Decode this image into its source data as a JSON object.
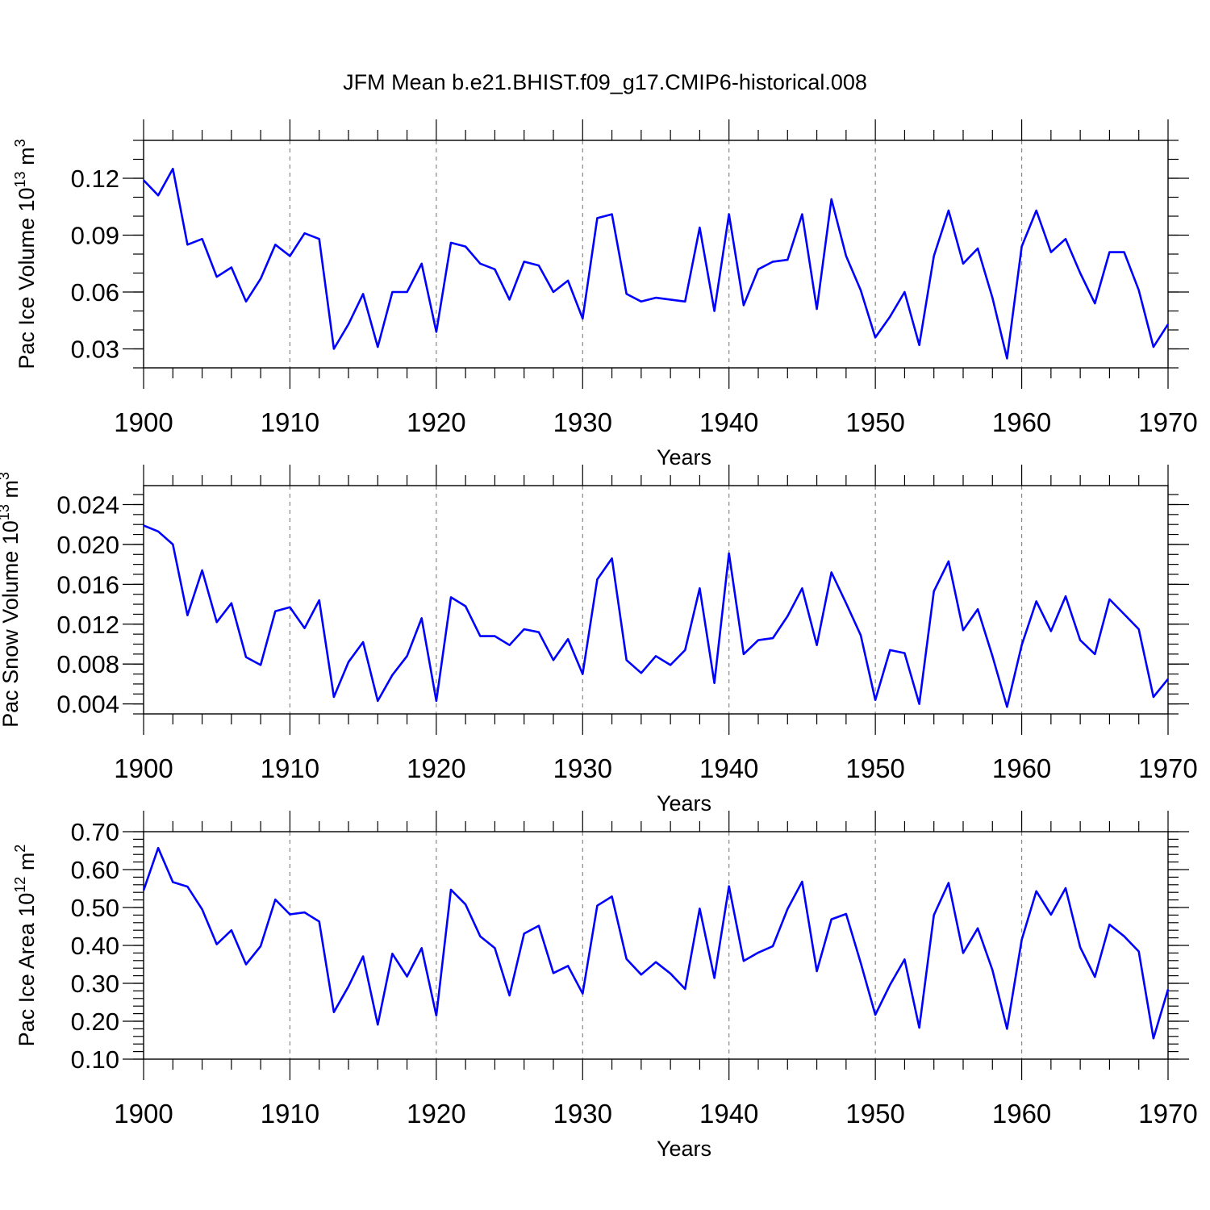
{
  "figure": {
    "title": "JFM Mean b.e21.BHIST.f09_g17.CMIP6-historical.008"
  },
  "colors": {
    "line": "#0000ff",
    "axis": "#000000",
    "grid": "#888888",
    "background": "#ffffff"
  },
  "chart_data": [
    {
      "type": "line",
      "ylabel": "Pac Ice Volume 10",
      "ylabel_exp": "13",
      "ylabel_unit": " m",
      "ylabel_unit_exp": "3",
      "xlabel": "Years",
      "xlim": [
        1900,
        1970
      ],
      "ylim": [
        0.02,
        0.14
      ],
      "yticks": [
        0.03,
        0.06,
        0.09,
        0.12
      ],
      "ytick_labels": [
        "0.03",
        "0.06",
        "0.09",
        "0.12"
      ],
      "yminor": 0.01,
      "xticks": [
        1900,
        1910,
        1920,
        1930,
        1940,
        1950,
        1960,
        1970
      ],
      "xtick_labels": [
        "1900",
        "1910",
        "1920",
        "1930",
        "1940",
        "1950",
        "1960",
        "1970"
      ],
      "grid": "vertical dashed at decades",
      "x_start": 1900,
      "values": [
        0.119,
        0.111,
        0.125,
        0.085,
        0.088,
        0.068,
        0.073,
        0.055,
        0.067,
        0.085,
        0.079,
        0.091,
        0.088,
        0.03,
        0.043,
        0.059,
        0.031,
        0.06,
        0.06,
        0.075,
        0.039,
        0.086,
        0.084,
        0.075,
        0.072,
        0.056,
        0.076,
        0.074,
        0.06,
        0.066,
        0.046,
        0.099,
        0.101,
        0.059,
        0.055,
        0.057,
        0.056,
        0.055,
        0.094,
        0.05,
        0.101,
        0.053,
        0.072,
        0.076,
        0.077,
        0.101,
        0.051,
        0.109,
        0.079,
        0.061,
        0.036,
        0.047,
        0.06,
        0.032,
        0.079,
        0.103,
        0.075,
        0.083,
        0.057,
        0.025,
        0.084,
        0.103,
        0.081,
        0.088,
        0.07,
        0.054,
        0.081,
        0.081,
        0.061,
        0.031,
        0.043
      ]
    },
    {
      "type": "line",
      "ylabel": "Pac Snow Volume 10",
      "ylabel_exp": "13",
      "ylabel_unit": " m",
      "ylabel_unit_exp": "3",
      "xlabel": "Years",
      "xlim": [
        1900,
        1970
      ],
      "ylim": [
        0.003,
        0.0259
      ],
      "yticks": [
        0.004,
        0.008,
        0.012,
        0.016,
        0.02,
        0.024
      ],
      "ytick_labels": [
        "0.004",
        "0.008",
        "0.012",
        "0.016",
        "0.020",
        "0.024"
      ],
      "yminor": 0.001,
      "xticks": [
        1900,
        1910,
        1920,
        1930,
        1940,
        1950,
        1960,
        1970
      ],
      "xtick_labels": [
        "1900",
        "1910",
        "1920",
        "1930",
        "1940",
        "1950",
        "1960",
        "1970"
      ],
      "grid": "vertical dashed at decades",
      "x_start": 1900,
      "values": [
        0.0219,
        0.0213,
        0.02,
        0.0129,
        0.0174,
        0.0122,
        0.0141,
        0.0087,
        0.0079,
        0.0133,
        0.0137,
        0.0116,
        0.0144,
        0.0047,
        0.0082,
        0.0102,
        0.0043,
        0.0069,
        0.0088,
        0.0126,
        0.0043,
        0.0147,
        0.0138,
        0.0108,
        0.0108,
        0.0099,
        0.0115,
        0.0112,
        0.0084,
        0.0105,
        0.007,
        0.0165,
        0.0186,
        0.0084,
        0.0071,
        0.0088,
        0.0079,
        0.0094,
        0.0156,
        0.0061,
        0.0191,
        0.009,
        0.0104,
        0.0106,
        0.0128,
        0.0156,
        0.0099,
        0.0172,
        0.0141,
        0.0109,
        0.0044,
        0.0094,
        0.0091,
        0.004,
        0.0153,
        0.0183,
        0.0114,
        0.0135,
        0.0088,
        0.0037,
        0.0099,
        0.0143,
        0.0113,
        0.0148,
        0.0104,
        0.009,
        0.0145,
        0.013,
        0.0115,
        0.0047,
        0.0065
      ]
    },
    {
      "type": "line",
      "ylabel": "Pac Ice Area 10",
      "ylabel_exp": "12",
      "ylabel_unit": " m",
      "ylabel_unit_exp": "2",
      "xlabel": "Years",
      "xlim": [
        1900,
        1970
      ],
      "ylim": [
        0.1,
        0.7
      ],
      "yticks": [
        0.1,
        0.2,
        0.3,
        0.4,
        0.5,
        0.6,
        0.7
      ],
      "ytick_labels": [
        "0.10",
        "0.20",
        "0.30",
        "0.40",
        "0.50",
        "0.60",
        "0.70"
      ],
      "yminor": 0.02,
      "xticks": [
        1900,
        1910,
        1920,
        1930,
        1940,
        1950,
        1960,
        1970
      ],
      "xtick_labels": [
        "1900",
        "1910",
        "1920",
        "1930",
        "1940",
        "1950",
        "1960",
        "1970"
      ],
      "grid": "vertical dashed at decades",
      "x_start": 1900,
      "values": [
        0.545,
        0.657,
        0.567,
        0.555,
        0.495,
        0.403,
        0.44,
        0.35,
        0.398,
        0.521,
        0.482,
        0.487,
        0.463,
        0.224,
        0.292,
        0.371,
        0.191,
        0.378,
        0.318,
        0.393,
        0.215,
        0.547,
        0.508,
        0.424,
        0.393,
        0.268,
        0.431,
        0.452,
        0.327,
        0.346,
        0.273,
        0.505,
        0.529,
        0.364,
        0.323,
        0.356,
        0.326,
        0.285,
        0.497,
        0.314,
        0.556,
        0.359,
        0.381,
        0.398,
        0.496,
        0.568,
        0.332,
        0.469,
        0.483,
        0.354,
        0.217,
        0.296,
        0.363,
        0.183,
        0.48,
        0.565,
        0.38,
        0.445,
        0.335,
        0.18,
        0.415,
        0.543,
        0.481,
        0.551,
        0.395,
        0.317,
        0.455,
        0.424,
        0.384,
        0.155,
        0.284
      ]
    }
  ]
}
